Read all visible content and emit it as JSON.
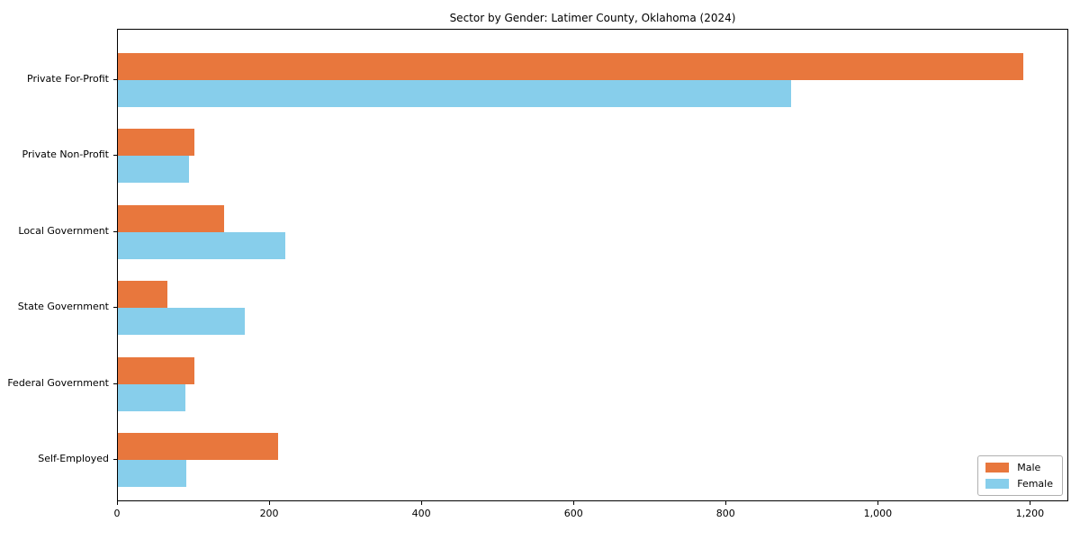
{
  "chart_data": {
    "type": "bar",
    "orientation": "horizontal",
    "title": "Sector by Gender: Latimer County, Oklahoma (2024)",
    "categories": [
      "Private For-Profit",
      "Private Non-Profit",
      "Local Government",
      "State Government",
      "Federal Government",
      "Self-Employed"
    ],
    "series": [
      {
        "name": "Male",
        "color": "#e8773d",
        "values": [
          1190,
          100,
          140,
          65,
          100,
          210
        ]
      },
      {
        "name": "Female",
        "color": "#87ceeb",
        "values": [
          885,
          93,
          220,
          167,
          89,
          90
        ]
      }
    ],
    "xlim": [
      0,
      1248
    ],
    "xticks": [
      0,
      200,
      400,
      600,
      800,
      1000,
      1200
    ],
    "xtick_labels": [
      "0",
      "200",
      "400",
      "600",
      "800",
      "1,000",
      "1,200"
    ],
    "xlabel": "",
    "ylabel": "",
    "grid": false,
    "legend": {
      "position": "lower right",
      "entries": [
        {
          "label": "Male",
          "color": "#e8773d"
        },
        {
          "label": "Female",
          "color": "#87ceeb"
        }
      ]
    }
  }
}
